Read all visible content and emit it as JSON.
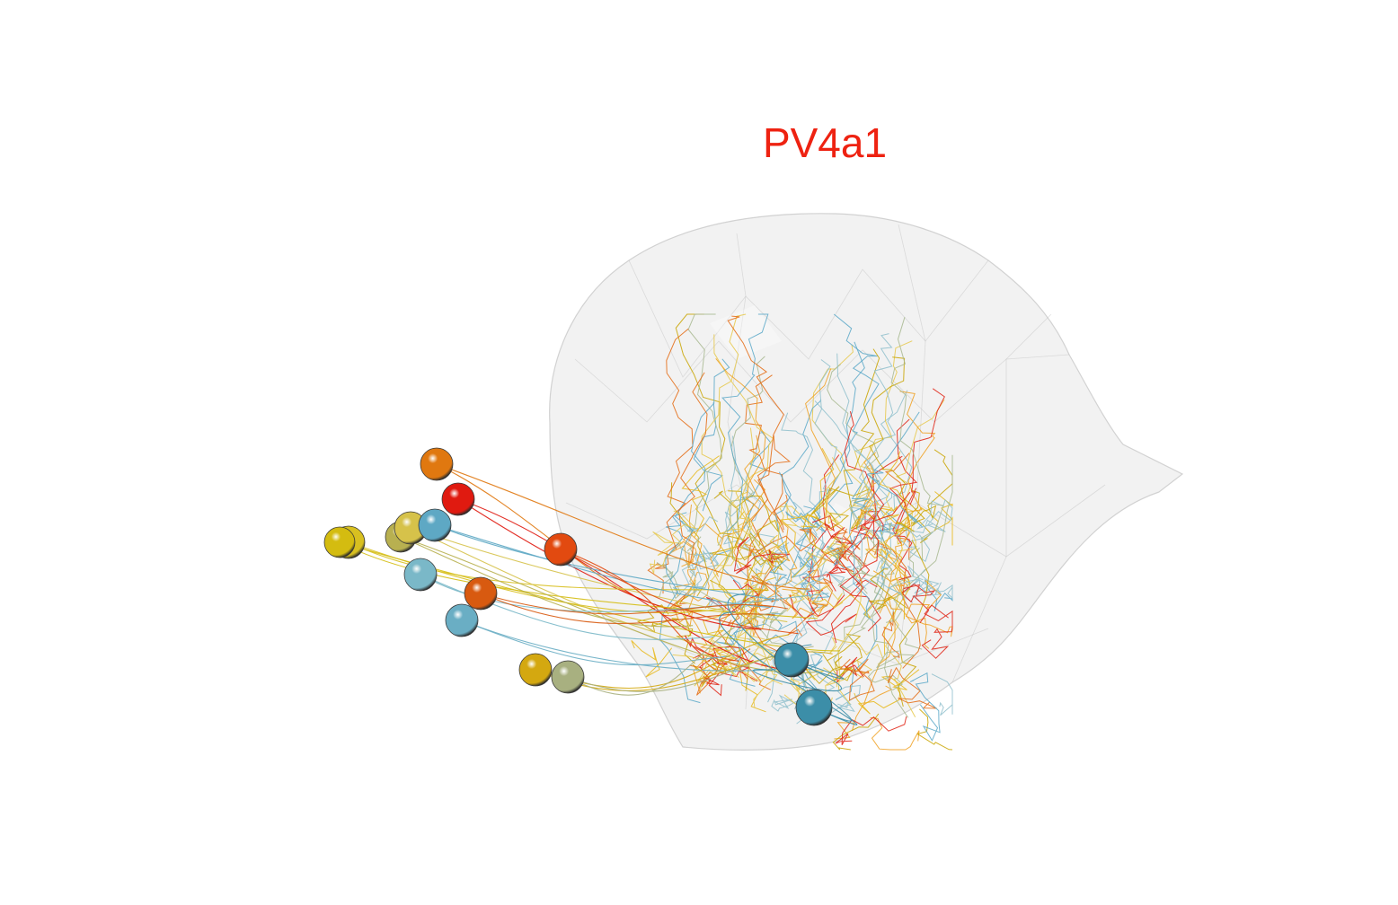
{
  "title": "PV4a1",
  "colors": {
    "title": "#ee2211",
    "mesh_fill": "#d8d8d8",
    "mesh_stroke": "#c8c8c8",
    "palette": [
      "#e8b81a",
      "#e6c84a",
      "#f0a020",
      "#e46a10",
      "#e02010",
      "#5aa8c8",
      "#8fc0cc",
      "#a8b890",
      "#c9a400"
    ]
  },
  "somas": [
    {
      "color": "#e07810",
      "label": "soma-orange"
    },
    {
      "color": "#e01a10",
      "label": "soma-red"
    },
    {
      "color": "#d8c020",
      "label": "soma-yellow"
    },
    {
      "color": "#d4bc10",
      "label": "soma-yellow"
    },
    {
      "color": "#b8b050",
      "label": "soma-olive"
    },
    {
      "color": "#d6c24a",
      "label": "soma-yellow"
    },
    {
      "color": "#5ea8c4",
      "label": "soma-blue"
    },
    {
      "color": "#e24a10",
      "label": "soma-red-orange"
    },
    {
      "color": "#7ab8c8",
      "label": "soma-blue"
    },
    {
      "color": "#d85a10",
      "label": "soma-red-orange"
    },
    {
      "color": "#6aaec4",
      "label": "soma-blue"
    },
    {
      "color": "#d4a810",
      "label": "soma-yellow"
    },
    {
      "color": "#a8b080",
      "label": "soma-olive"
    },
    {
      "color": "#3c8ea8",
      "label": "soma-teal"
    },
    {
      "color": "#3c8ea8",
      "label": "soma-teal"
    }
  ]
}
